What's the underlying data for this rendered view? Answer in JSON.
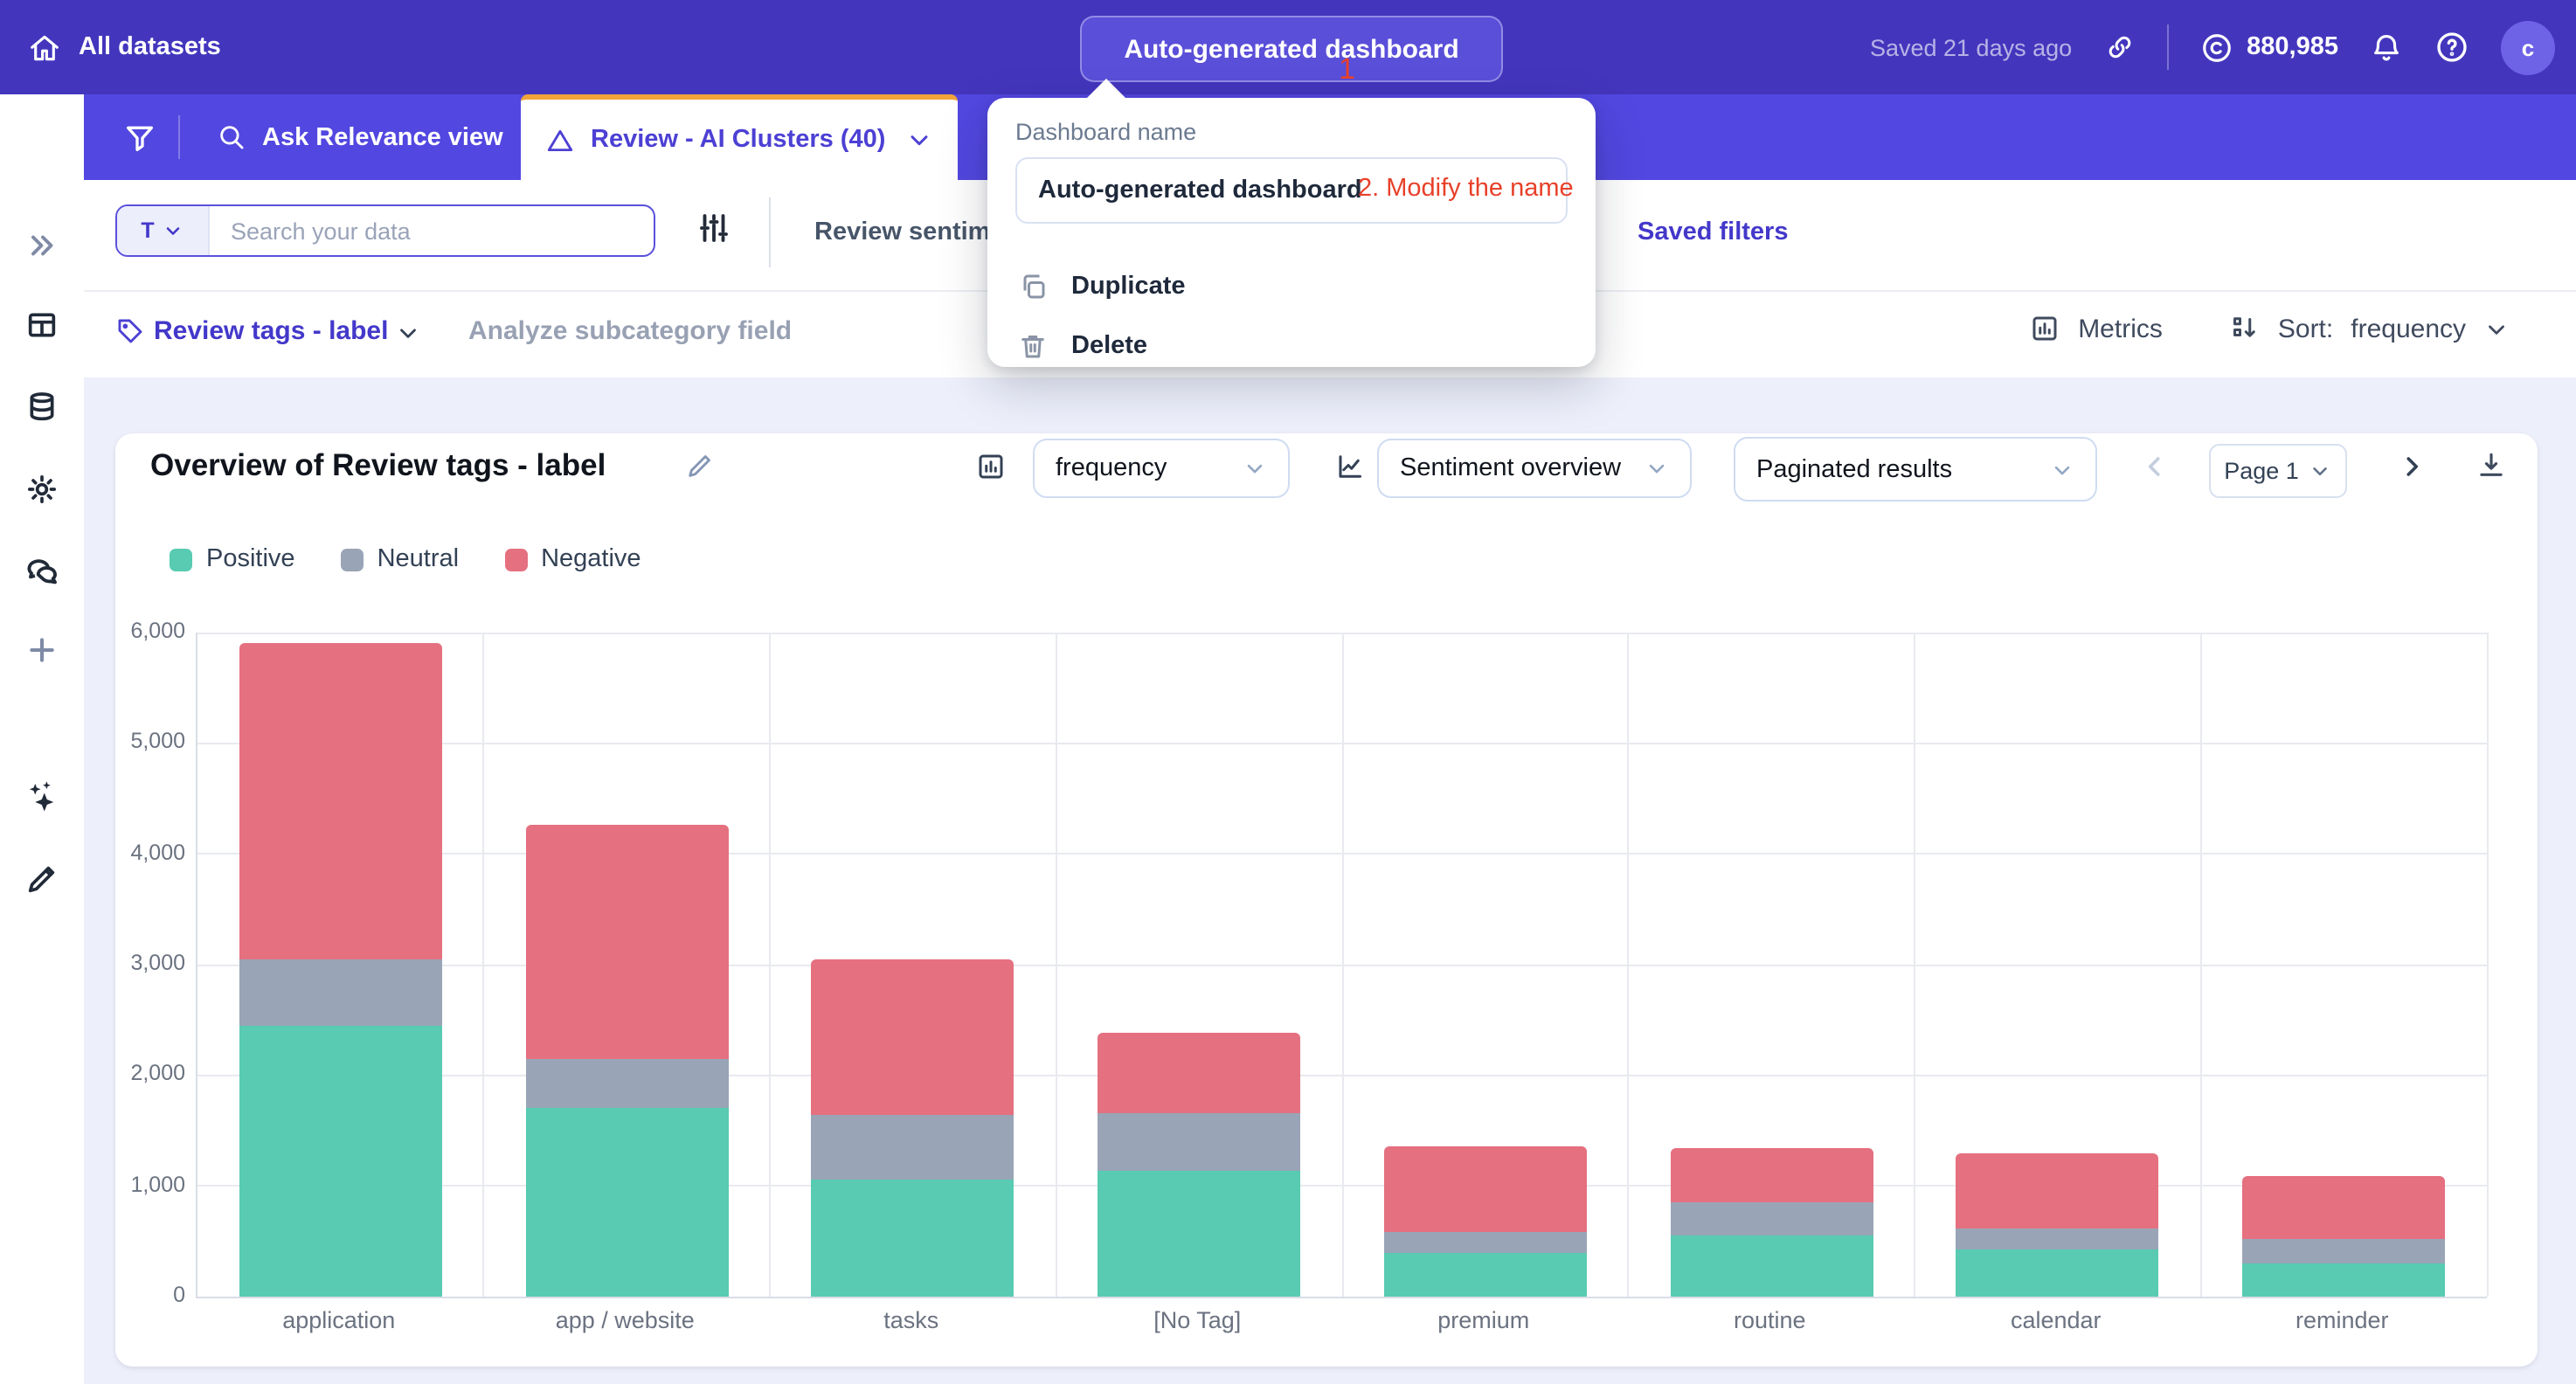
{
  "topbar": {
    "home_label": "All datasets",
    "dashboard_button": "Auto-generated dashboard",
    "saved_status": "Saved 21 days ago",
    "credits": "880,985",
    "avatar_initial": "c"
  },
  "tabs": {
    "ask_view": "Ask Relevance view",
    "active_tab": "Review - AI Clusters (40)"
  },
  "toolbar": {
    "type_prefix": "T",
    "search_placeholder": "Search your data",
    "review_sentiment_label": "Review sentim",
    "saved_filters": "Saved filters"
  },
  "field_row": {
    "category_field": "Review tags - label",
    "subcategory_placeholder": "Analyze subcategory field",
    "metrics_label": "Metrics",
    "sort_label": "Sort:",
    "sort_value": "frequency"
  },
  "popup": {
    "title": "Dashboard name",
    "input_value": "Auto-generated dashboard",
    "menu": [
      {
        "label": "Duplicate"
      },
      {
        "label": "Delete"
      }
    ]
  },
  "annotations": {
    "step1": "1",
    "step2": "2. Modify the name",
    "color": "#e8402a"
  },
  "card": {
    "title": "Overview of Review tags - label",
    "metric_select": "frequency",
    "view_select": "Sentiment overview",
    "mode_select": "Paginated results",
    "page_select": "Page 1"
  },
  "chart_data": {
    "type": "bar",
    "stacked": true,
    "title": "Overview of Review tags - label",
    "categories": [
      "application",
      "app / website",
      "tasks",
      "[No Tag]",
      "premium",
      "routine",
      "calendar",
      "reminder"
    ],
    "series": [
      {
        "name": "Positive",
        "color": "#58cbb2",
        "values": [
          2450,
          1700,
          1060,
          1140,
          390,
          545,
          430,
          300
        ]
      },
      {
        "name": "Neutral",
        "color": "#99a4b6",
        "values": [
          600,
          450,
          590,
          520,
          195,
          300,
          190,
          215
        ]
      },
      {
        "name": "Negative",
        "color": "#e57080",
        "values": [
          2850,
          2120,
          1400,
          730,
          770,
          490,
          680,
          575
        ]
      }
    ],
    "ylim": [
      0,
      6000
    ],
    "yticks": [
      0,
      1000,
      2000,
      3000,
      4000,
      5000,
      6000
    ],
    "grid": true,
    "legend_position": "top-left",
    "xlabel": "",
    "ylabel": ""
  }
}
